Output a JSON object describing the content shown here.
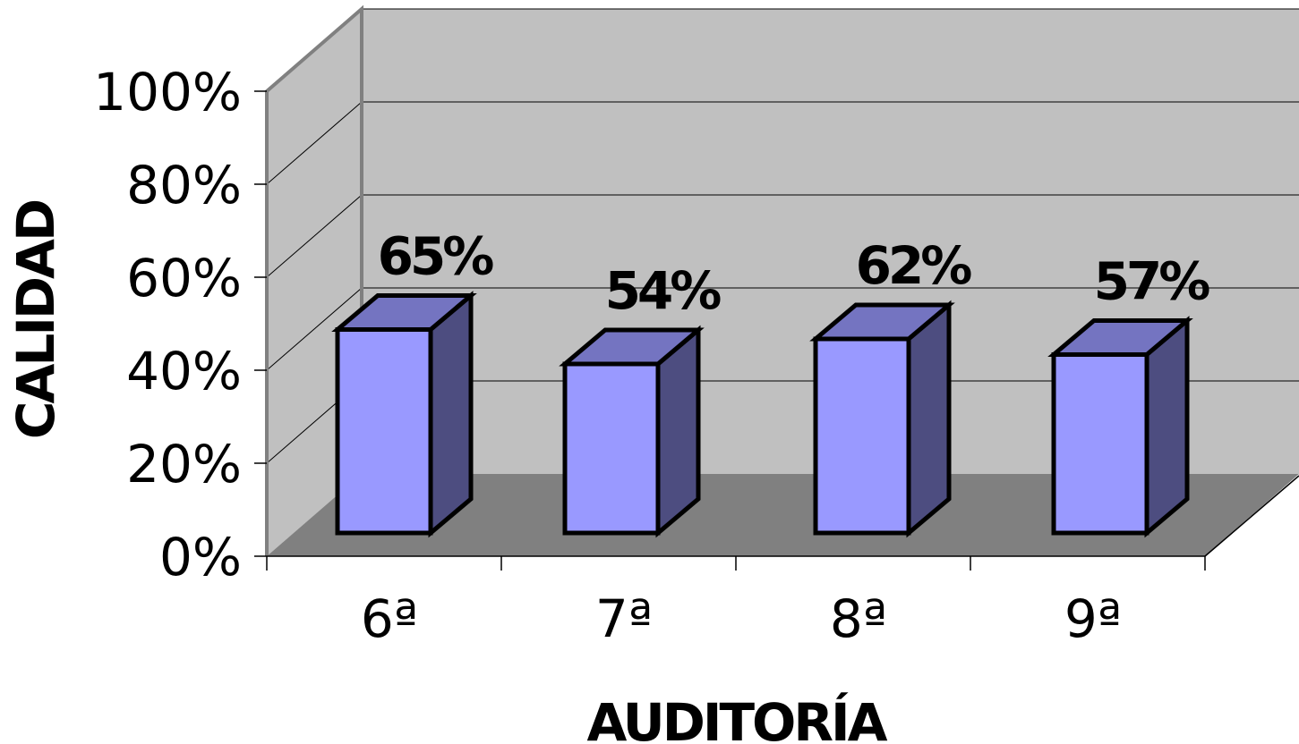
{
  "chart_data": {
    "type": "bar",
    "categories": [
      "6ª",
      "7ª",
      "8ª",
      "9ª"
    ],
    "values": [
      65,
      54,
      62,
      57
    ],
    "value_labels": [
      "65%",
      "54%",
      "62%",
      "57%"
    ],
    "xlabel": "AUDITORÍA",
    "ylabel": "CALIDAD",
    "ylim": [
      0,
      100
    ],
    "yticks": [
      "0%",
      "20%",
      "40%",
      "60%",
      "80%",
      "100%"
    ],
    "grid": true,
    "legend": "none",
    "colors": {
      "bar_front": "#9999ff",
      "bar_top": "#7474c1",
      "bar_side": "#4d4d80",
      "back_wall": "#c0c0c0",
      "side_wall": "#c0c0c0",
      "floor": "#808080",
      "outline": "#000000"
    }
  }
}
